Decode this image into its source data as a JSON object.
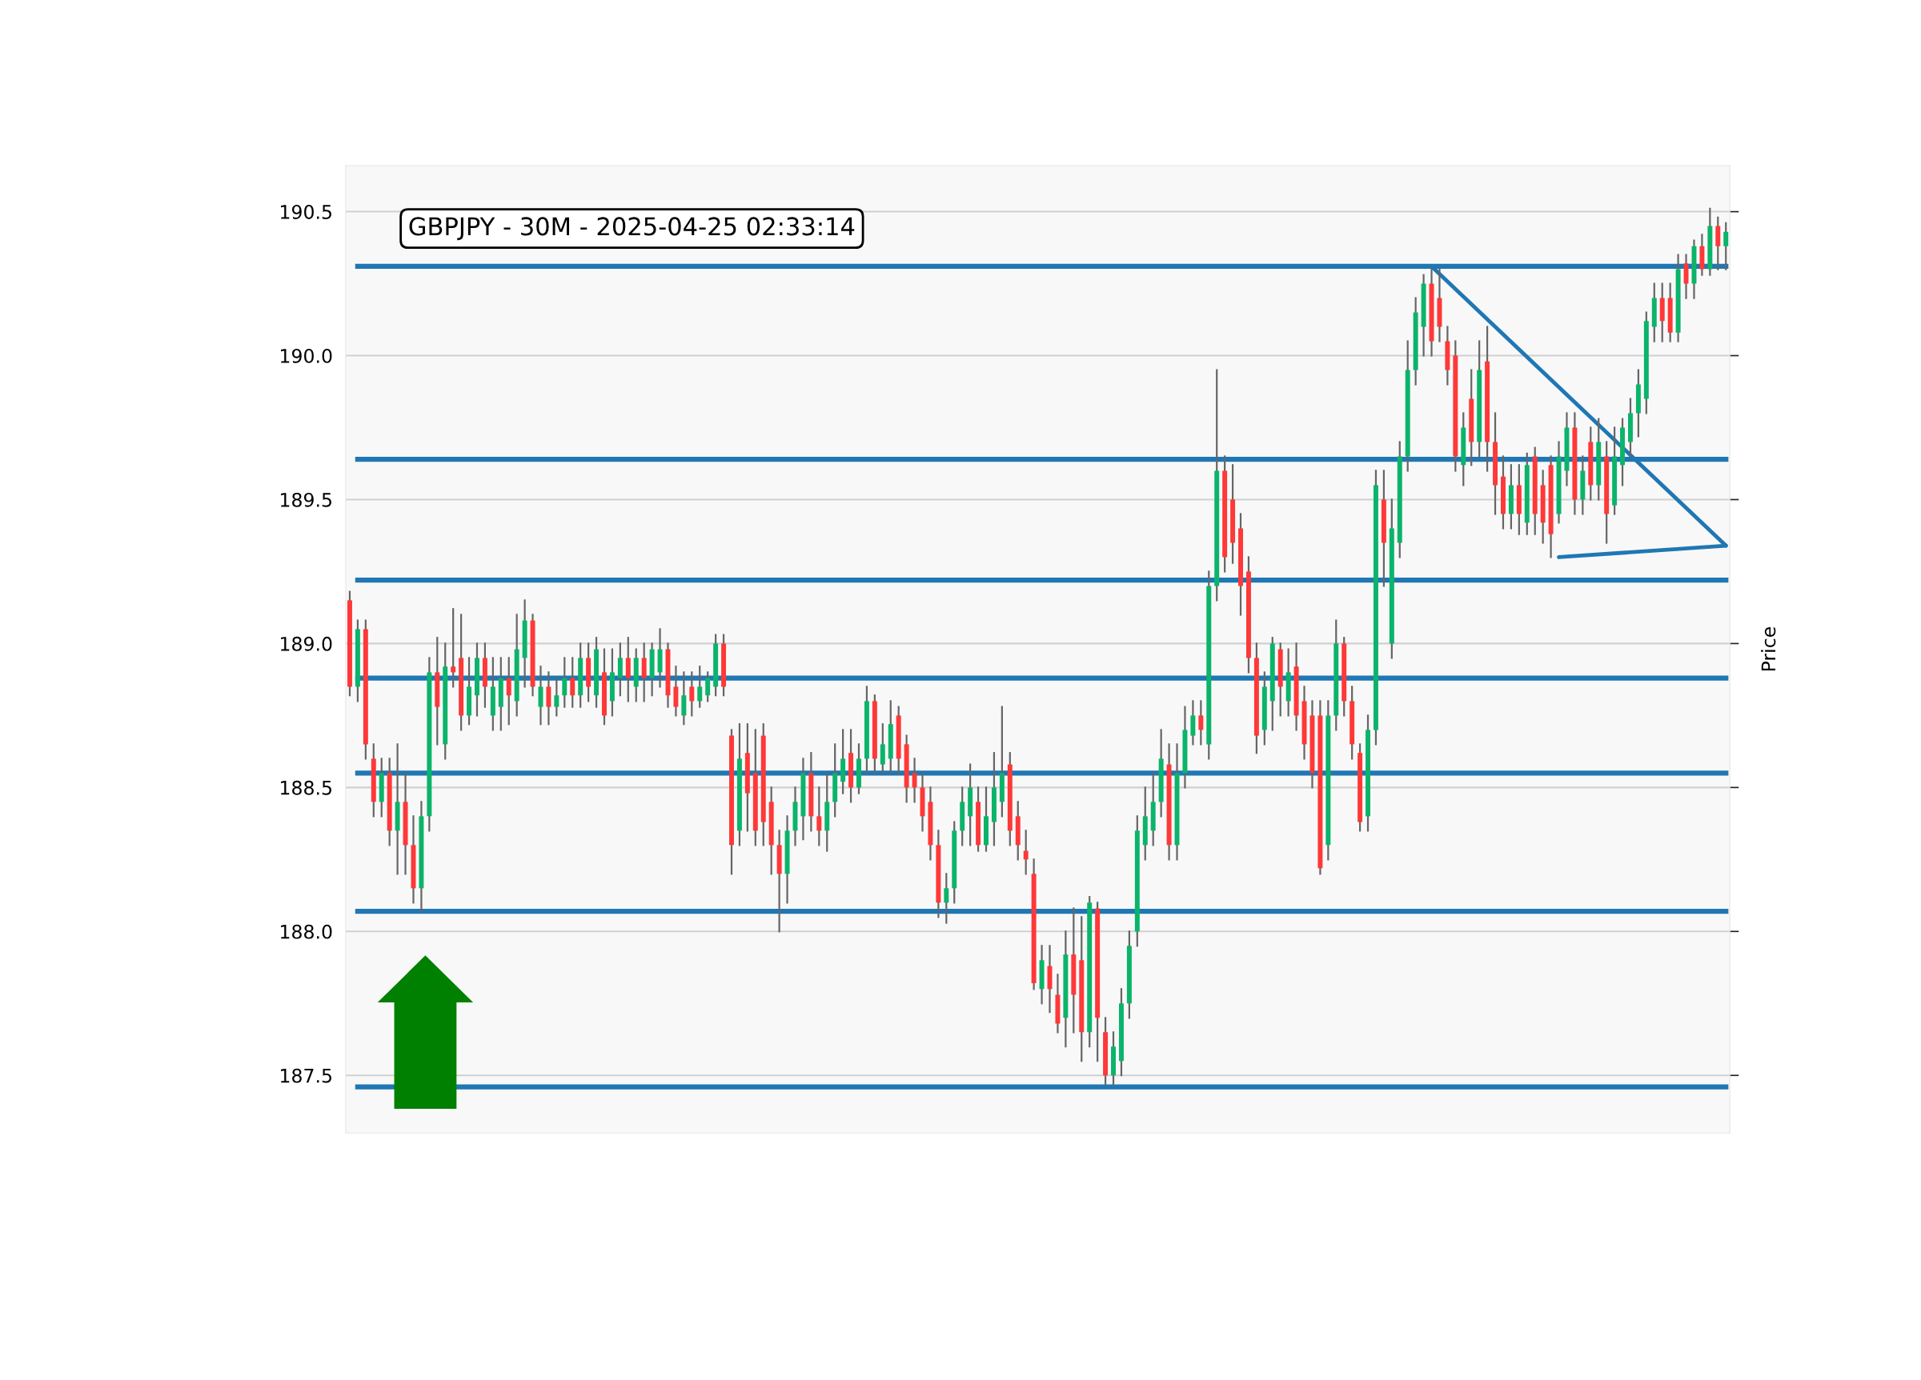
{
  "chart_data": {
    "type": "candlestick",
    "title": "GBPJPY - 30M - 2025-04-25 02:33:14",
    "ylabel": "Price",
    "categories": [
      null,
      null,
      null,
      null,
      null,
      null,
      null,
      null,
      null,
      null,
      null,
      null,
      null,
      null,
      null,
      null,
      null,
      null,
      null,
      null,
      null,
      null,
      null,
      null,
      null,
      null,
      null,
      null,
      null,
      null,
      null,
      null,
      null,
      null,
      null,
      null,
      null,
      null,
      null,
      null,
      null,
      null,
      null,
      null,
      null,
      null,
      null,
      null,
      null,
      null,
      null,
      null,
      null,
      null,
      null,
      null,
      null,
      null,
      null,
      null,
      null,
      null,
      null,
      null,
      null,
      null,
      null,
      null,
      null,
      null,
      null,
      null,
      null,
      null,
      null,
      null,
      null,
      null,
      null,
      null,
      null,
      null,
      null,
      null,
      null,
      null,
      null,
      null,
      null,
      null,
      null,
      null,
      null,
      null,
      null,
      null,
      null,
      null,
      null,
      null,
      null,
      null,
      null,
      null,
      null,
      null,
      null,
      null,
      null,
      null,
      null,
      null,
      null,
      null,
      null,
      null,
      null,
      null,
      null,
      null,
      null,
      null,
      null,
      null,
      null,
      null,
      null,
      null,
      null,
      null,
      null,
      null,
      null,
      null,
      null,
      null,
      null,
      null,
      null,
      null,
      null,
      null,
      null,
      null,
      null,
      null,
      null,
      null,
      null,
      null,
      null,
      null,
      null,
      null,
      null,
      null,
      null,
      null,
      null,
      null,
      null,
      null,
      null,
      null,
      null,
      null,
      null,
      null,
      null,
      null,
      null,
      null,
      null,
      null
    ],
    "ohlc": [
      [
        189.15,
        189.18,
        188.82,
        188.85
      ],
      [
        188.85,
        189.08,
        188.8,
        189.05
      ],
      [
        189.05,
        189.08,
        188.6,
        188.65
      ],
      [
        188.6,
        188.65,
        188.4,
        188.45
      ],
      [
        188.45,
        188.6,
        188.4,
        188.55
      ],
      [
        188.55,
        188.6,
        188.3,
        188.35
      ],
      [
        188.35,
        188.65,
        188.2,
        188.45
      ],
      [
        188.45,
        188.55,
        188.2,
        188.3
      ],
      [
        188.3,
        188.4,
        188.1,
        188.15
      ],
      [
        188.15,
        188.45,
        188.07,
        188.4
      ],
      [
        188.4,
        188.95,
        188.35,
        188.9
      ],
      [
        188.9,
        189.02,
        188.65,
        188.78
      ],
      [
        188.65,
        189.0,
        188.6,
        188.92
      ],
      [
        188.92,
        189.12,
        188.85,
        188.9
      ],
      [
        188.95,
        189.1,
        188.7,
        188.75
      ],
      [
        188.75,
        188.95,
        188.72,
        188.85
      ],
      [
        188.82,
        189.0,
        188.75,
        188.95
      ],
      [
        188.95,
        189.0,
        188.78,
        188.85
      ],
      [
        188.75,
        188.95,
        188.7,
        188.85
      ],
      [
        188.78,
        188.95,
        188.7,
        188.88
      ],
      [
        188.88,
        188.95,
        188.72,
        188.82
      ],
      [
        188.8,
        189.1,
        188.75,
        188.98
      ],
      [
        188.95,
        189.15,
        188.85,
        189.08
      ],
      [
        189.08,
        189.1,
        188.82,
        188.85
      ],
      [
        188.78,
        188.92,
        188.72,
        188.85
      ],
      [
        188.85,
        188.9,
        188.72,
        188.78
      ],
      [
        188.78,
        188.88,
        188.75,
        188.82
      ],
      [
        188.82,
        188.95,
        188.78,
        188.88
      ],
      [
        188.88,
        188.95,
        188.78,
        188.82
      ],
      [
        188.82,
        189.0,
        188.78,
        188.95
      ],
      [
        188.95,
        189.0,
        188.8,
        188.85
      ],
      [
        188.82,
        189.02,
        188.78,
        188.98
      ],
      [
        188.9,
        188.98,
        188.72,
        188.75
      ],
      [
        188.8,
        188.98,
        188.75,
        188.9
      ],
      [
        188.88,
        189.0,
        188.82,
        188.95
      ],
      [
        188.95,
        189.02,
        188.8,
        188.88
      ],
      [
        188.85,
        188.98,
        188.8,
        188.95
      ],
      [
        188.95,
        189.0,
        188.8,
        188.88
      ],
      [
        188.88,
        189.0,
        188.82,
        188.98
      ],
      [
        188.9,
        189.05,
        188.85,
        188.98
      ],
      [
        188.98,
        189.0,
        188.78,
        188.82
      ],
      [
        188.85,
        188.92,
        188.75,
        188.78
      ],
      [
        188.75,
        188.9,
        188.72,
        188.82
      ],
      [
        188.85,
        188.9,
        188.75,
        188.8
      ],
      [
        188.8,
        188.92,
        188.78,
        188.85
      ],
      [
        188.82,
        188.9,
        188.8,
        188.88
      ],
      [
        188.85,
        189.03,
        188.82,
        189.0
      ],
      [
        189.0,
        189.03,
        188.82,
        188.85
      ],
      [
        188.68,
        188.7,
        188.2,
        188.3
      ],
      [
        188.35,
        188.72,
        188.3,
        188.6
      ],
      [
        188.62,
        188.72,
        188.35,
        188.48
      ],
      [
        188.55,
        188.7,
        188.3,
        188.35
      ],
      [
        188.68,
        188.72,
        188.3,
        188.38
      ],
      [
        188.45,
        188.5,
        188.2,
        188.3
      ],
      [
        188.3,
        188.35,
        188.0,
        188.2
      ],
      [
        188.2,
        188.4,
        188.1,
        188.35
      ],
      [
        188.35,
        188.5,
        188.3,
        188.45
      ],
      [
        188.4,
        188.6,
        188.32,
        188.55
      ],
      [
        188.55,
        188.62,
        188.35,
        188.4
      ],
      [
        188.4,
        188.5,
        188.3,
        188.35
      ],
      [
        188.35,
        188.55,
        188.28,
        188.45
      ],
      [
        188.45,
        188.65,
        188.4,
        188.55
      ],
      [
        188.52,
        188.7,
        188.48,
        188.6
      ],
      [
        188.62,
        188.7,
        188.45,
        188.5
      ],
      [
        188.5,
        188.65,
        188.48,
        188.6
      ],
      [
        188.6,
        188.85,
        188.55,
        188.8
      ],
      [
        188.8,
        188.82,
        188.55,
        188.6
      ],
      [
        188.58,
        188.72,
        188.55,
        188.65
      ],
      [
        188.6,
        188.8,
        188.55,
        188.72
      ],
      [
        188.75,
        188.78,
        188.55,
        188.6
      ],
      [
        188.65,
        188.68,
        188.45,
        188.5
      ],
      [
        188.55,
        188.6,
        188.45,
        188.5
      ],
      [
        188.5,
        188.55,
        188.35,
        188.4
      ],
      [
        188.45,
        188.5,
        188.25,
        188.3
      ],
      [
        188.3,
        188.35,
        188.05,
        188.1
      ],
      [
        188.1,
        188.2,
        188.03,
        188.15
      ],
      [
        188.15,
        188.38,
        188.1,
        188.35
      ],
      [
        188.35,
        188.5,
        188.3,
        188.45
      ],
      [
        188.4,
        188.58,
        188.3,
        188.5
      ],
      [
        188.45,
        188.5,
        188.28,
        188.3
      ],
      [
        188.3,
        188.5,
        188.28,
        188.4
      ],
      [
        188.38,
        188.62,
        188.3,
        188.5
      ],
      [
        188.45,
        188.78,
        188.4,
        188.55
      ],
      [
        188.58,
        188.62,
        188.3,
        188.35
      ],
      [
        188.4,
        188.45,
        188.25,
        188.3
      ],
      [
        188.28,
        188.35,
        188.2,
        188.25
      ],
      [
        188.2,
        188.25,
        187.8,
        187.82
      ],
      [
        187.8,
        187.95,
        187.75,
        187.9
      ],
      [
        187.88,
        187.95,
        187.72,
        187.8
      ],
      [
        187.78,
        187.85,
        187.65,
        187.68
      ],
      [
        187.7,
        188.0,
        187.6,
        187.92
      ],
      [
        187.92,
        188.08,
        187.65,
        187.78
      ],
      [
        187.9,
        188.05,
        187.55,
        187.65
      ],
      [
        187.65,
        188.12,
        187.6,
        188.1
      ],
      [
        188.08,
        188.1,
        187.55,
        187.7
      ],
      [
        187.65,
        187.7,
        187.47,
        187.5
      ],
      [
        187.5,
        187.65,
        187.47,
        187.6
      ],
      [
        187.55,
        187.8,
        187.5,
        187.75
      ],
      [
        187.75,
        188.0,
        187.7,
        187.95
      ],
      [
        188.0,
        188.4,
        187.95,
        188.35
      ],
      [
        188.3,
        188.5,
        188.25,
        188.4
      ],
      [
        188.35,
        188.55,
        188.3,
        188.45
      ],
      [
        188.45,
        188.7,
        188.4,
        188.6
      ],
      [
        188.58,
        188.65,
        188.25,
        188.3
      ],
      [
        188.3,
        188.65,
        188.25,
        188.55
      ],
      [
        188.55,
        188.78,
        188.5,
        188.7
      ],
      [
        188.68,
        188.8,
        188.65,
        188.75
      ],
      [
        188.75,
        188.8,
        188.65,
        188.7
      ],
      [
        188.65,
        189.25,
        188.6,
        189.2
      ],
      [
        189.2,
        189.95,
        189.15,
        189.6
      ],
      [
        189.6,
        189.65,
        189.25,
        189.3
      ],
      [
        189.5,
        189.62,
        189.28,
        189.35
      ],
      [
        189.4,
        189.45,
        189.1,
        189.2
      ],
      [
        189.25,
        189.3,
        188.9,
        188.95
      ],
      [
        188.95,
        189.0,
        188.62,
        188.68
      ],
      [
        188.7,
        188.9,
        188.65,
        188.85
      ],
      [
        188.8,
        189.02,
        188.7,
        189.0
      ],
      [
        188.98,
        189.0,
        188.75,
        188.85
      ],
      [
        188.8,
        188.98,
        188.75,
        188.9
      ],
      [
        188.92,
        189.0,
        188.7,
        188.75
      ],
      [
        188.8,
        188.85,
        188.6,
        188.65
      ],
      [
        188.75,
        188.8,
        188.5,
        188.55
      ],
      [
        188.75,
        188.8,
        188.2,
        188.22
      ],
      [
        188.3,
        188.8,
        188.25,
        188.75
      ],
      [
        188.75,
        189.08,
        188.7,
        189.0
      ],
      [
        189.0,
        189.02,
        188.75,
        188.8
      ],
      [
        188.8,
        188.85,
        188.6,
        188.65
      ],
      [
        188.62,
        188.65,
        188.35,
        188.38
      ],
      [
        188.4,
        188.75,
        188.35,
        188.7
      ],
      [
        188.7,
        189.6,
        188.65,
        189.55
      ],
      [
        189.5,
        189.6,
        189.2,
        189.35
      ],
      [
        189.0,
        189.5,
        188.95,
        189.4
      ],
      [
        189.35,
        189.7,
        189.3,
        189.65
      ],
      [
        189.65,
        190.05,
        189.6,
        189.95
      ],
      [
        189.95,
        190.2,
        189.9,
        190.15
      ],
      [
        190.1,
        190.28,
        190.0,
        190.25
      ],
      [
        190.25,
        190.3,
        190.0,
        190.05
      ],
      [
        190.2,
        190.3,
        190.05,
        190.1
      ],
      [
        190.05,
        190.1,
        189.9,
        189.95
      ],
      [
        190.0,
        190.05,
        189.6,
        189.65
      ],
      [
        189.62,
        189.8,
        189.55,
        189.75
      ],
      [
        189.85,
        189.95,
        189.62,
        189.7
      ],
      [
        189.7,
        190.05,
        189.65,
        189.95
      ],
      [
        189.98,
        190.1,
        189.6,
        189.7
      ],
      [
        189.7,
        189.8,
        189.45,
        189.55
      ],
      [
        189.58,
        189.65,
        189.4,
        189.45
      ],
      [
        189.45,
        189.62,
        189.4,
        189.55
      ],
      [
        189.55,
        189.62,
        189.38,
        189.45
      ],
      [
        189.42,
        189.66,
        189.38,
        189.62
      ],
      [
        189.65,
        189.68,
        189.38,
        189.45
      ],
      [
        189.55,
        189.6,
        189.35,
        189.42
      ],
      [
        189.62,
        189.65,
        189.3,
        189.38
      ],
      [
        189.45,
        189.7,
        189.42,
        189.65
      ],
      [
        189.6,
        189.8,
        189.55,
        189.75
      ],
      [
        189.75,
        189.8,
        189.45,
        189.5
      ],
      [
        189.5,
        189.65,
        189.45,
        189.6
      ],
      [
        189.7,
        189.75,
        189.5,
        189.55
      ],
      [
        189.55,
        189.78,
        189.5,
        189.7
      ],
      [
        189.65,
        189.7,
        189.35,
        189.45
      ],
      [
        189.48,
        189.75,
        189.45,
        189.65
      ],
      [
        189.62,
        189.78,
        189.55,
        189.75
      ],
      [
        189.7,
        189.85,
        189.65,
        189.8
      ],
      [
        189.8,
        189.95,
        189.72,
        189.9
      ],
      [
        189.85,
        190.15,
        189.8,
        190.12
      ],
      [
        190.1,
        190.25,
        190.05,
        190.2
      ],
      [
        190.2,
        190.25,
        190.05,
        190.12
      ],
      [
        190.2,
        190.25,
        190.05,
        190.08
      ],
      [
        190.08,
        190.35,
        190.05,
        190.3
      ],
      [
        190.32,
        190.35,
        190.2,
        190.25
      ],
      [
        190.25,
        190.4,
        190.2,
        190.38
      ],
      [
        190.38,
        190.42,
        190.28,
        190.3
      ],
      [
        190.3,
        190.51,
        190.28,
        190.45
      ],
      [
        190.45,
        190.48,
        190.3,
        190.38
      ],
      [
        190.38,
        190.46,
        190.3,
        190.43
      ]
    ],
    "series": [
      {
        "type": "line",
        "values": [
          null,
          null,
          null,
          null,
          null,
          null,
          null,
          null,
          null,
          null,
          null,
          null,
          null,
          null,
          null,
          null,
          null,
          null,
          null,
          null,
          null,
          null,
          null,
          null,
          null,
          null,
          null,
          null,
          null,
          null,
          null,
          null,
          null,
          null,
          null,
          null,
          null,
          null,
          null,
          null,
          null,
          null,
          null,
          null,
          null,
          null,
          null,
          null,
          null,
          null,
          null,
          null,
          null,
          null,
          null,
          null,
          null,
          null,
          null,
          null,
          null,
          null,
          null,
          null,
          null,
          null,
          null,
          null,
          null,
          null,
          null,
          null,
          null,
          null,
          null,
          null,
          null,
          null,
          null,
          null,
          null,
          null,
          null,
          null,
          null,
          null,
          null,
          null,
          null,
          null,
          null,
          null,
          null,
          null,
          null,
          null,
          null,
          null,
          null,
          null,
          null,
          null,
          null,
          null,
          null,
          null,
          null,
          null,
          null,
          null,
          null,
          null,
          null,
          null,
          null,
          null,
          null,
          null,
          null,
          null,
          null,
          null,
          null,
          null,
          null,
          null,
          null,
          null,
          null,
          null,
          null,
          null,
          null,
          null,
          null,
          null,
          190.31,
          null,
          null,
          null,
          null,
          null,
          null,
          null,
          null,
          null,
          null,
          null,
          null,
          null,
          null,
          null,
          null,
          null,
          null,
          null,
          null,
          null,
          null,
          null,
          null,
          null,
          null,
          null,
          null,
          null,
          null,
          null,
          null,
          null,
          null,
          null,
          null,
          189.34
        ],
        "color": "#1f77b4"
      },
      {
        "type": "line",
        "values": [
          null,
          null,
          null,
          null,
          null,
          null,
          null,
          null,
          null,
          null,
          null,
          null,
          null,
          null,
          null,
          null,
          null,
          null,
          null,
          null,
          null,
          null,
          null,
          null,
          null,
          null,
          null,
          null,
          null,
          null,
          null,
          null,
          null,
          null,
          null,
          null,
          null,
          null,
          null,
          null,
          null,
          null,
          null,
          null,
          null,
          null,
          null,
          null,
          null,
          null,
          null,
          null,
          null,
          null,
          null,
          null,
          null,
          null,
          null,
          null,
          null,
          null,
          null,
          null,
          null,
          null,
          null,
          null,
          null,
          null,
          null,
          null,
          null,
          null,
          null,
          null,
          null,
          null,
          null,
          null,
          null,
          null,
          null,
          null,
          null,
          null,
          null,
          null,
          null,
          null,
          null,
          null,
          null,
          null,
          null,
          null,
          null,
          null,
          null,
          null,
          null,
          null,
          null,
          null,
          null,
          null,
          null,
          null,
          null,
          null,
          null,
          null,
          null,
          null,
          null,
          null,
          null,
          null,
          null,
          null,
          null,
          null,
          null,
          null,
          null,
          null,
          null,
          null,
          null,
          null,
          null,
          null,
          null,
          null,
          null,
          null,
          null,
          null,
          null,
          null,
          null,
          null,
          null,
          null,
          null,
          null,
          null,
          null,
          null,
          null,
          null,
          null,
          189.3,
          null,
          null,
          null,
          null,
          null,
          null,
          null,
          null,
          null,
          null,
          null,
          null,
          null,
          null,
          null,
          null,
          null,
          null,
          null,
          null,
          189.34
        ],
        "color": "#1f77b4"
      }
    ],
    "ref_lines": [
      {
        "axis": "y",
        "value": 190.31,
        "color": "#1f77b4"
      },
      {
        "axis": "y",
        "value": 189.64,
        "color": "#1f77b4"
      },
      {
        "axis": "y",
        "value": 189.22,
        "color": "#1f77b4"
      },
      {
        "axis": "y",
        "value": 188.88,
        "color": "#1f77b4"
      },
      {
        "axis": "y",
        "value": 188.55,
        "color": "#1f77b4"
      },
      {
        "axis": "y",
        "value": 188.07,
        "color": "#1f77b4"
      },
      {
        "axis": "y",
        "value": 187.46,
        "color": "#1f77b4"
      }
    ],
    "ylim": [
      187.3,
      190.66
    ],
    "yticks": [
      {
        "value": 187.5,
        "label": "187.5"
      },
      {
        "value": 188.0,
        "label": "188.0"
      },
      {
        "value": 188.5,
        "label": "188.5"
      },
      {
        "value": 189.0,
        "label": "189.0"
      },
      {
        "value": 189.5,
        "label": "189.5"
      },
      {
        "value": 190.0,
        "label": "190.0"
      },
      {
        "value": 190.5,
        "label": "190.5"
      }
    ],
    "grid": "y",
    "tick_labels": "y"
  }
}
